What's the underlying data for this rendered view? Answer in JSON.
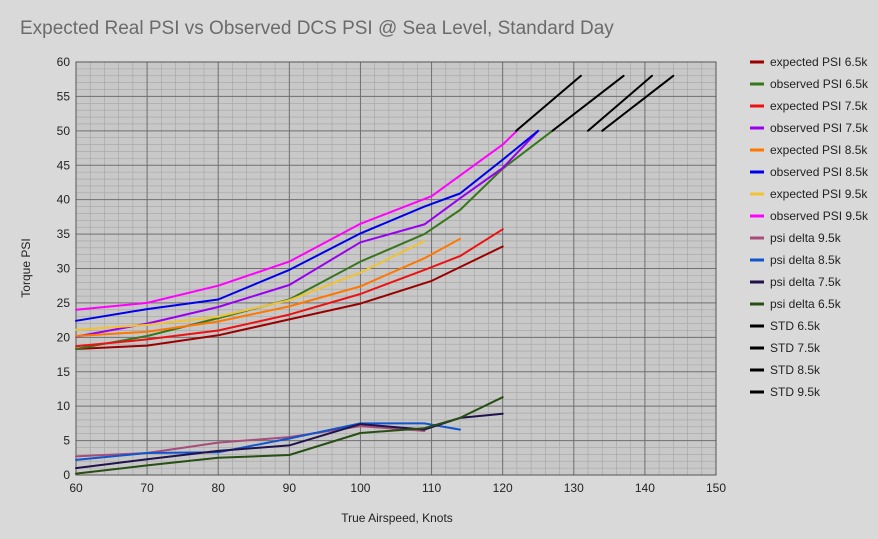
{
  "chart_data": {
    "type": "line",
    "title": "Expected Real PSI vs Observed DCS PSI @ Sea Level, Standard Day",
    "xlabel": "True Airspeed, Knots",
    "ylabel": "Torque PSI",
    "xlim": [
      60,
      150
    ],
    "ylim": [
      0,
      60
    ],
    "xticks": [
      60,
      70,
      80,
      90,
      100,
      110,
      120,
      130,
      140,
      150
    ],
    "yticks": [
      0,
      5,
      10,
      15,
      20,
      25,
      30,
      35,
      40,
      45,
      50,
      55,
      60
    ],
    "grid": true,
    "legend": "right",
    "series": [
      {
        "name": "expected PSI 6.5k",
        "color": "#990000",
        "x": [
          60,
          70,
          80,
          90,
          100,
          110,
          114,
          120
        ],
        "y": [
          18.3,
          18.8,
          20.3,
          22.6,
          24.9,
          28.2,
          30.2,
          33.2
        ]
      },
      {
        "name": "observed PSI 6.5k",
        "color": "#38761d",
        "x": [
          60,
          70,
          80,
          90,
          100,
          109,
          114,
          120,
          127
        ],
        "y": [
          18.3,
          20.2,
          22.8,
          25.5,
          31.0,
          35.0,
          38.5,
          44.5,
          50.0
        ]
      },
      {
        "name": "expected PSI 7.5k",
        "color": "#ee1111",
        "x": [
          60,
          70,
          80,
          90,
          100,
          109,
          114,
          120
        ],
        "y": [
          18.7,
          19.7,
          21.0,
          23.3,
          26.3,
          29.8,
          31.8,
          35.7
        ]
      },
      {
        "name": "observed PSI 7.5k",
        "color": "#9900ee",
        "x": [
          60,
          70,
          80,
          90,
          100,
          109,
          114,
          120,
          125
        ],
        "y": [
          20.1,
          22.0,
          24.4,
          27.6,
          33.8,
          36.4,
          40.2,
          44.6,
          50.0
        ]
      },
      {
        "name": "expected PSI 8.5k",
        "color": "#ff7700",
        "x": [
          60,
          70,
          80,
          90,
          100,
          109,
          114
        ],
        "y": [
          20.2,
          20.8,
          22.3,
          24.5,
          27.4,
          31.5,
          34.3
        ]
      },
      {
        "name": "observed PSI 8.5k",
        "color": "#0000ee",
        "x": [
          60,
          70,
          80,
          90,
          100,
          109,
          114,
          120,
          125
        ],
        "y": [
          22.4,
          24.1,
          25.5,
          29.8,
          35.1,
          39.0,
          40.9,
          45.8,
          50.0
        ]
      },
      {
        "name": "expected PSI 9.5k",
        "color": "#f1c232",
        "x": [
          60,
          70,
          80,
          90,
          100,
          109
        ],
        "y": [
          21.1,
          21.8,
          23.0,
          25.4,
          29.4,
          34.0
        ]
      },
      {
        "name": "observed PSI 9.5k",
        "color": "#ff00ff",
        "x": [
          60,
          70,
          80,
          90,
          100,
          110,
          120,
          122
        ],
        "y": [
          24.0,
          25.0,
          27.5,
          31.0,
          36.5,
          40.5,
          48.0,
          50.0
        ]
      },
      {
        "name": "psi delta 9.5k",
        "color": "#a64d79",
        "x": [
          60,
          70,
          80,
          90,
          100,
          109
        ],
        "y": [
          2.7,
          3.2,
          4.7,
          5.5,
          7.1,
          6.4
        ]
      },
      {
        "name": "psi delta 8.5k",
        "color": "#1155cc",
        "x": [
          60,
          70,
          80,
          90,
          100,
          109,
          114
        ],
        "y": [
          2.2,
          3.2,
          3.3,
          5.3,
          7.5,
          7.5,
          6.6
        ]
      },
      {
        "name": "psi delta 7.5k",
        "color": "#20124d",
        "x": [
          60,
          70,
          80,
          90,
          100,
          109,
          114,
          120
        ],
        "y": [
          1.0,
          2.3,
          3.5,
          4.3,
          7.4,
          6.6,
          8.3,
          8.9
        ]
      },
      {
        "name": "psi delta 6.5k",
        "color": "#274e13",
        "x": [
          60,
          70,
          80,
          90,
          100,
          109,
          114,
          120
        ],
        "y": [
          0.2,
          1.4,
          2.5,
          2.9,
          6.1,
          6.8,
          8.3,
          11.3
        ]
      },
      {
        "name": "STD 6.5k",
        "color": "#000000",
        "x": [
          121.9,
          131.0
        ],
        "y": [
          50.0,
          58.0
        ]
      },
      {
        "name": "STD 7.5k",
        "color": "#000000",
        "x": [
          127.0,
          137.0
        ],
        "y": [
          50.0,
          58.0
        ]
      },
      {
        "name": "STD 8.5k",
        "color": "#000000",
        "x": [
          132.0,
          141.0
        ],
        "y": [
          50.0,
          58.0
        ]
      },
      {
        "name": "STD 9.5k",
        "color": "#000000",
        "x": [
          134.0,
          144.0
        ],
        "y": [
          50.0,
          58.0
        ]
      }
    ]
  }
}
